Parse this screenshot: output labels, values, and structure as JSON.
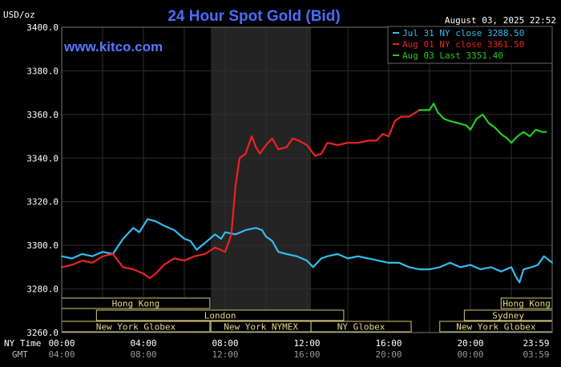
{
  "chart_data": {
    "type": "line",
    "title": "24 Hour Spot Gold (Bid)",
    "ylabel": "USD/oz",
    "watermark": "www.kitco.com",
    "timestamp": "August 03, 2025 22:52",
    "ylim": [
      3260,
      3400
    ],
    "yticks": [
      3260,
      3280,
      3300,
      3320,
      3340,
      3360,
      3380,
      3400
    ],
    "ytick_labels": [
      "3260.0",
      "3280.0",
      "3300.0",
      "3320.0",
      "3340.0",
      "3360.0",
      "3380.0",
      "3400.0"
    ],
    "xlim": [
      0,
      24
    ],
    "xticks": [
      {
        "x": 0,
        "ny": "00:00",
        "gmt": "04:00"
      },
      {
        "x": 4,
        "ny": "04:00",
        "gmt": "08:00"
      },
      {
        "x": 8,
        "ny": "08:00",
        "gmt": "12:00"
      },
      {
        "x": 12,
        "ny": "12:00",
        "gmt": "16:00"
      },
      {
        "x": 16,
        "ny": "16:00",
        "gmt": "20:00"
      },
      {
        "x": 20,
        "ny": "20:00",
        "gmt": "00:00"
      },
      {
        "x": 24,
        "ny": "23:59",
        "gmt": "03:59"
      }
    ],
    "row_labels": {
      "ny": "NY Time",
      "gmt": "GMT"
    },
    "highlight_hours": [
      7.3,
      12.2
    ],
    "grid": true,
    "legend_position": "top-right",
    "series": [
      {
        "name": "Jul 31 NY close 3288.50",
        "color": "#33bbee",
        "points": [
          [
            0,
            3295
          ],
          [
            0.5,
            3294
          ],
          [
            1,
            3296
          ],
          [
            1.5,
            3295
          ],
          [
            2,
            3297
          ],
          [
            2.5,
            3296
          ],
          [
            3,
            3303
          ],
          [
            3.5,
            3308
          ],
          [
            3.8,
            3306
          ],
          [
            4.2,
            3312
          ],
          [
            4.6,
            3311
          ],
          [
            5,
            3309
          ],
          [
            5.5,
            3307
          ],
          [
            6,
            3303
          ],
          [
            6.3,
            3302
          ],
          [
            6.6,
            3298
          ],
          [
            7,
            3301
          ],
          [
            7.5,
            3305
          ],
          [
            7.8,
            3303
          ],
          [
            8,
            3306
          ],
          [
            8.5,
            3305
          ],
          [
            9,
            3307
          ],
          [
            9.5,
            3308
          ],
          [
            9.8,
            3307
          ],
          [
            10,
            3304
          ],
          [
            10.3,
            3302
          ],
          [
            10.6,
            3297
          ],
          [
            11,
            3296
          ],
          [
            11.5,
            3295
          ],
          [
            12,
            3293
          ],
          [
            12.3,
            3290
          ],
          [
            12.7,
            3294
          ],
          [
            13,
            3295
          ],
          [
            13.5,
            3296
          ],
          [
            14,
            3294
          ],
          [
            14.5,
            3295
          ],
          [
            15,
            3294
          ],
          [
            15.5,
            3293
          ],
          [
            16,
            3292
          ],
          [
            16.5,
            3292
          ],
          [
            17,
            3290
          ],
          [
            17.5,
            3289
          ],
          [
            18,
            3289
          ],
          [
            18.5,
            3290
          ],
          [
            19,
            3292
          ],
          [
            19.5,
            3290
          ],
          [
            20,
            3291
          ],
          [
            20.5,
            3289
          ],
          [
            21,
            3290
          ],
          [
            21.5,
            3288
          ],
          [
            22,
            3290
          ],
          [
            22.2,
            3286
          ],
          [
            22.4,
            3283
          ],
          [
            22.6,
            3289
          ],
          [
            23,
            3290
          ],
          [
            23.3,
            3291
          ],
          [
            23.6,
            3295
          ],
          [
            24,
            3292
          ]
        ]
      },
      {
        "name": "Aug 01 NY close 3361.50",
        "color": "#ee2222",
        "points": [
          [
            0,
            3290
          ],
          [
            0.5,
            3291
          ],
          [
            1,
            3293
          ],
          [
            1.5,
            3292
          ],
          [
            2,
            3295
          ],
          [
            2.5,
            3296
          ],
          [
            3,
            3290
          ],
          [
            3.5,
            3289
          ],
          [
            4,
            3287
          ],
          [
            4.3,
            3285
          ],
          [
            4.6,
            3287
          ],
          [
            5,
            3291
          ],
          [
            5.5,
            3294
          ],
          [
            6,
            3293
          ],
          [
            6.5,
            3295
          ],
          [
            7,
            3296
          ],
          [
            7.5,
            3299
          ],
          [
            8,
            3297
          ],
          [
            8.3,
            3305
          ],
          [
            8.5,
            3327
          ],
          [
            8.7,
            3340
          ],
          [
            9,
            3342
          ],
          [
            9.3,
            3350
          ],
          [
            9.5,
            3345
          ],
          [
            9.7,
            3342
          ],
          [
            10,
            3346
          ],
          [
            10.3,
            3349
          ],
          [
            10.6,
            3344
          ],
          [
            11,
            3345
          ],
          [
            11.3,
            3349
          ],
          [
            11.6,
            3348
          ],
          [
            12,
            3346
          ],
          [
            12.4,
            3341
          ],
          [
            12.7,
            3342
          ],
          [
            13,
            3347
          ],
          [
            13.5,
            3346
          ],
          [
            14,
            3347
          ],
          [
            14.5,
            3347
          ],
          [
            15,
            3348
          ],
          [
            15.4,
            3348
          ],
          [
            15.7,
            3351
          ],
          [
            16,
            3350
          ],
          [
            16.3,
            3357
          ],
          [
            16.6,
            3359
          ],
          [
            17,
            3359
          ],
          [
            17.5,
            3362
          ],
          [
            18,
            3362
          ]
        ]
      },
      {
        "name": "Aug 03 Last 3351.40",
        "color": "#22cc22",
        "points": [
          [
            17.5,
            3362
          ],
          [
            18,
            3362
          ],
          [
            18.2,
            3365
          ],
          [
            18.4,
            3361
          ],
          [
            18.7,
            3358
          ],
          [
            19,
            3357
          ],
          [
            19.4,
            3356
          ],
          [
            19.8,
            3355
          ],
          [
            20,
            3353
          ],
          [
            20.3,
            3358
          ],
          [
            20.6,
            3360
          ],
          [
            20.9,
            3356
          ],
          [
            21.2,
            3354
          ],
          [
            21.5,
            3351
          ],
          [
            21.8,
            3349
          ],
          [
            22,
            3347
          ],
          [
            22.3,
            3350
          ],
          [
            22.6,
            3352
          ],
          [
            22.9,
            3350
          ],
          [
            23.2,
            3353
          ],
          [
            23.5,
            3352
          ],
          [
            23.7,
            3352
          ]
        ]
      }
    ],
    "session_rows": [
      [
        {
          "label": "Hong Kong",
          "start": 0,
          "end": 7.25
        },
        {
          "label": "Hong Kong",
          "start": 21.5,
          "end": 24
        }
      ],
      [
        {
          "label": "London",
          "start": 1.7,
          "end": 13.8
        },
        {
          "label": "Sydney",
          "start": 19.7,
          "end": 24
        }
      ],
      [
        {
          "label": "New York Globex",
          "start": 0,
          "end": 7.25
        },
        {
          "label": "New York NYMEX",
          "start": 7.3,
          "end": 12.2
        },
        {
          "label": "NY Globex",
          "start": 12.2,
          "end": 17.1
        },
        {
          "label": "New York Globex",
          "start": 18.5,
          "end": 24
        }
      ]
    ]
  }
}
